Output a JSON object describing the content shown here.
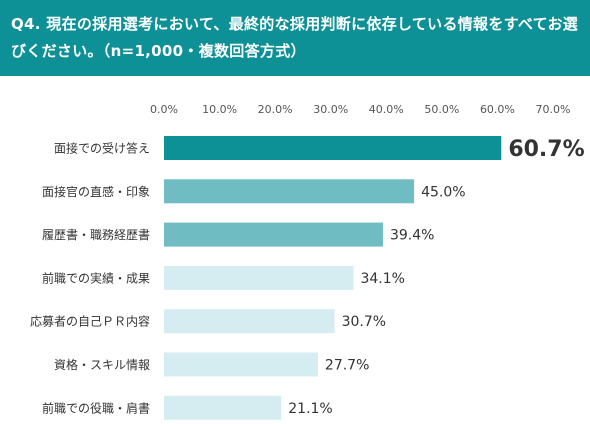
{
  "title": "Q4. 現在の採用選考において、最終的な採用判断に依存している情報をすべてお選びください。（n=1,000・複数回答方式）",
  "colors": {
    "header": "#0e9097",
    "bar_top": "#0e9097",
    "bar_mid": "#6fbcc3",
    "bar_low": "#d5edf0",
    "label": "#333333",
    "tick": "#555555"
  },
  "chart_data": {
    "type": "bar",
    "orientation": "horizontal",
    "categories": [
      "面接での受け答え",
      "面接官の直感・印象",
      "履歴書・職務経歴書",
      "前職での実績・成果",
      "応募者の自己ＰＲ内容",
      "資格・スキル情報",
      "前職での役職・肩書"
    ],
    "values": [
      60.7,
      45.0,
      39.4,
      34.1,
      30.7,
      27.7,
      21.1
    ],
    "value_labels": [
      "60.7%",
      "45.0%",
      "39.4%",
      "34.1%",
      "30.7%",
      "27.7%",
      "21.1%"
    ],
    "xlim": [
      0,
      70
    ],
    "x_ticks": [
      "0.0%",
      "10.0%",
      "20.0%",
      "30.0%",
      "40.0%",
      "50.0%",
      "60.0%",
      "70.0%"
    ],
    "grid": false,
    "legend": "none"
  }
}
